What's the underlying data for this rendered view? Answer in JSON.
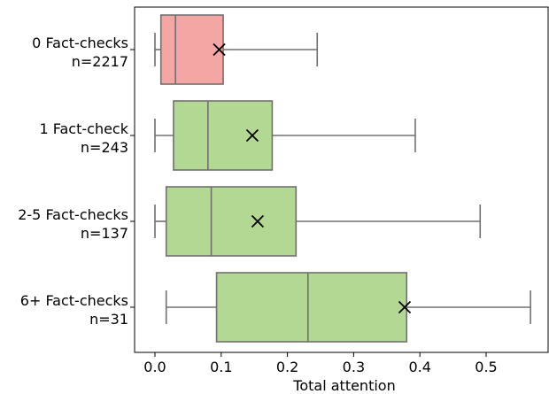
{
  "chart_data": {
    "type": "boxplot",
    "orientation": "horizontal",
    "xlabel": "Total attention",
    "xlim": [
      -0.03,
      0.59
    ],
    "xticks": [
      0.0,
      0.1,
      0.2,
      0.3,
      0.4,
      0.5
    ],
    "xtick_labels": [
      "0.0",
      "0.1",
      "0.2",
      "0.3",
      "0.4",
      "0.5"
    ],
    "grid": false,
    "colors": {
      "zero": "#f4a6a4",
      "nonzero": "#b3d893",
      "line": "#707070",
      "mean_marker": "#000000"
    },
    "mean_marker": "x",
    "groups": [
      {
        "label": "0 Fact-checks",
        "n_label": "n=2217",
        "color_key": "zero",
        "whisker_low": 0.0,
        "q1": 0.009,
        "median": 0.031,
        "q3": 0.103,
        "whisker_high": 0.245,
        "mean": 0.097
      },
      {
        "label": "1 Fact-check",
        "n_label": "n=243",
        "color_key": "nonzero",
        "whisker_low": 0.0,
        "q1": 0.028,
        "median": 0.08,
        "q3": 0.177,
        "whisker_high": 0.393,
        "mean": 0.147
      },
      {
        "label": "2-5 Fact-checks",
        "n_label": "n=137",
        "color_key": "nonzero",
        "whisker_low": 0.0,
        "q1": 0.017,
        "median": 0.085,
        "q3": 0.213,
        "whisker_high": 0.491,
        "mean": 0.155
      },
      {
        "label": "6+ Fact-checks",
        "n_label": "n=31",
        "color_key": "nonzero",
        "whisker_low": 0.017,
        "q1": 0.093,
        "median": 0.231,
        "q3": 0.38,
        "whisker_high": 0.567,
        "mean": 0.377
      }
    ]
  }
}
